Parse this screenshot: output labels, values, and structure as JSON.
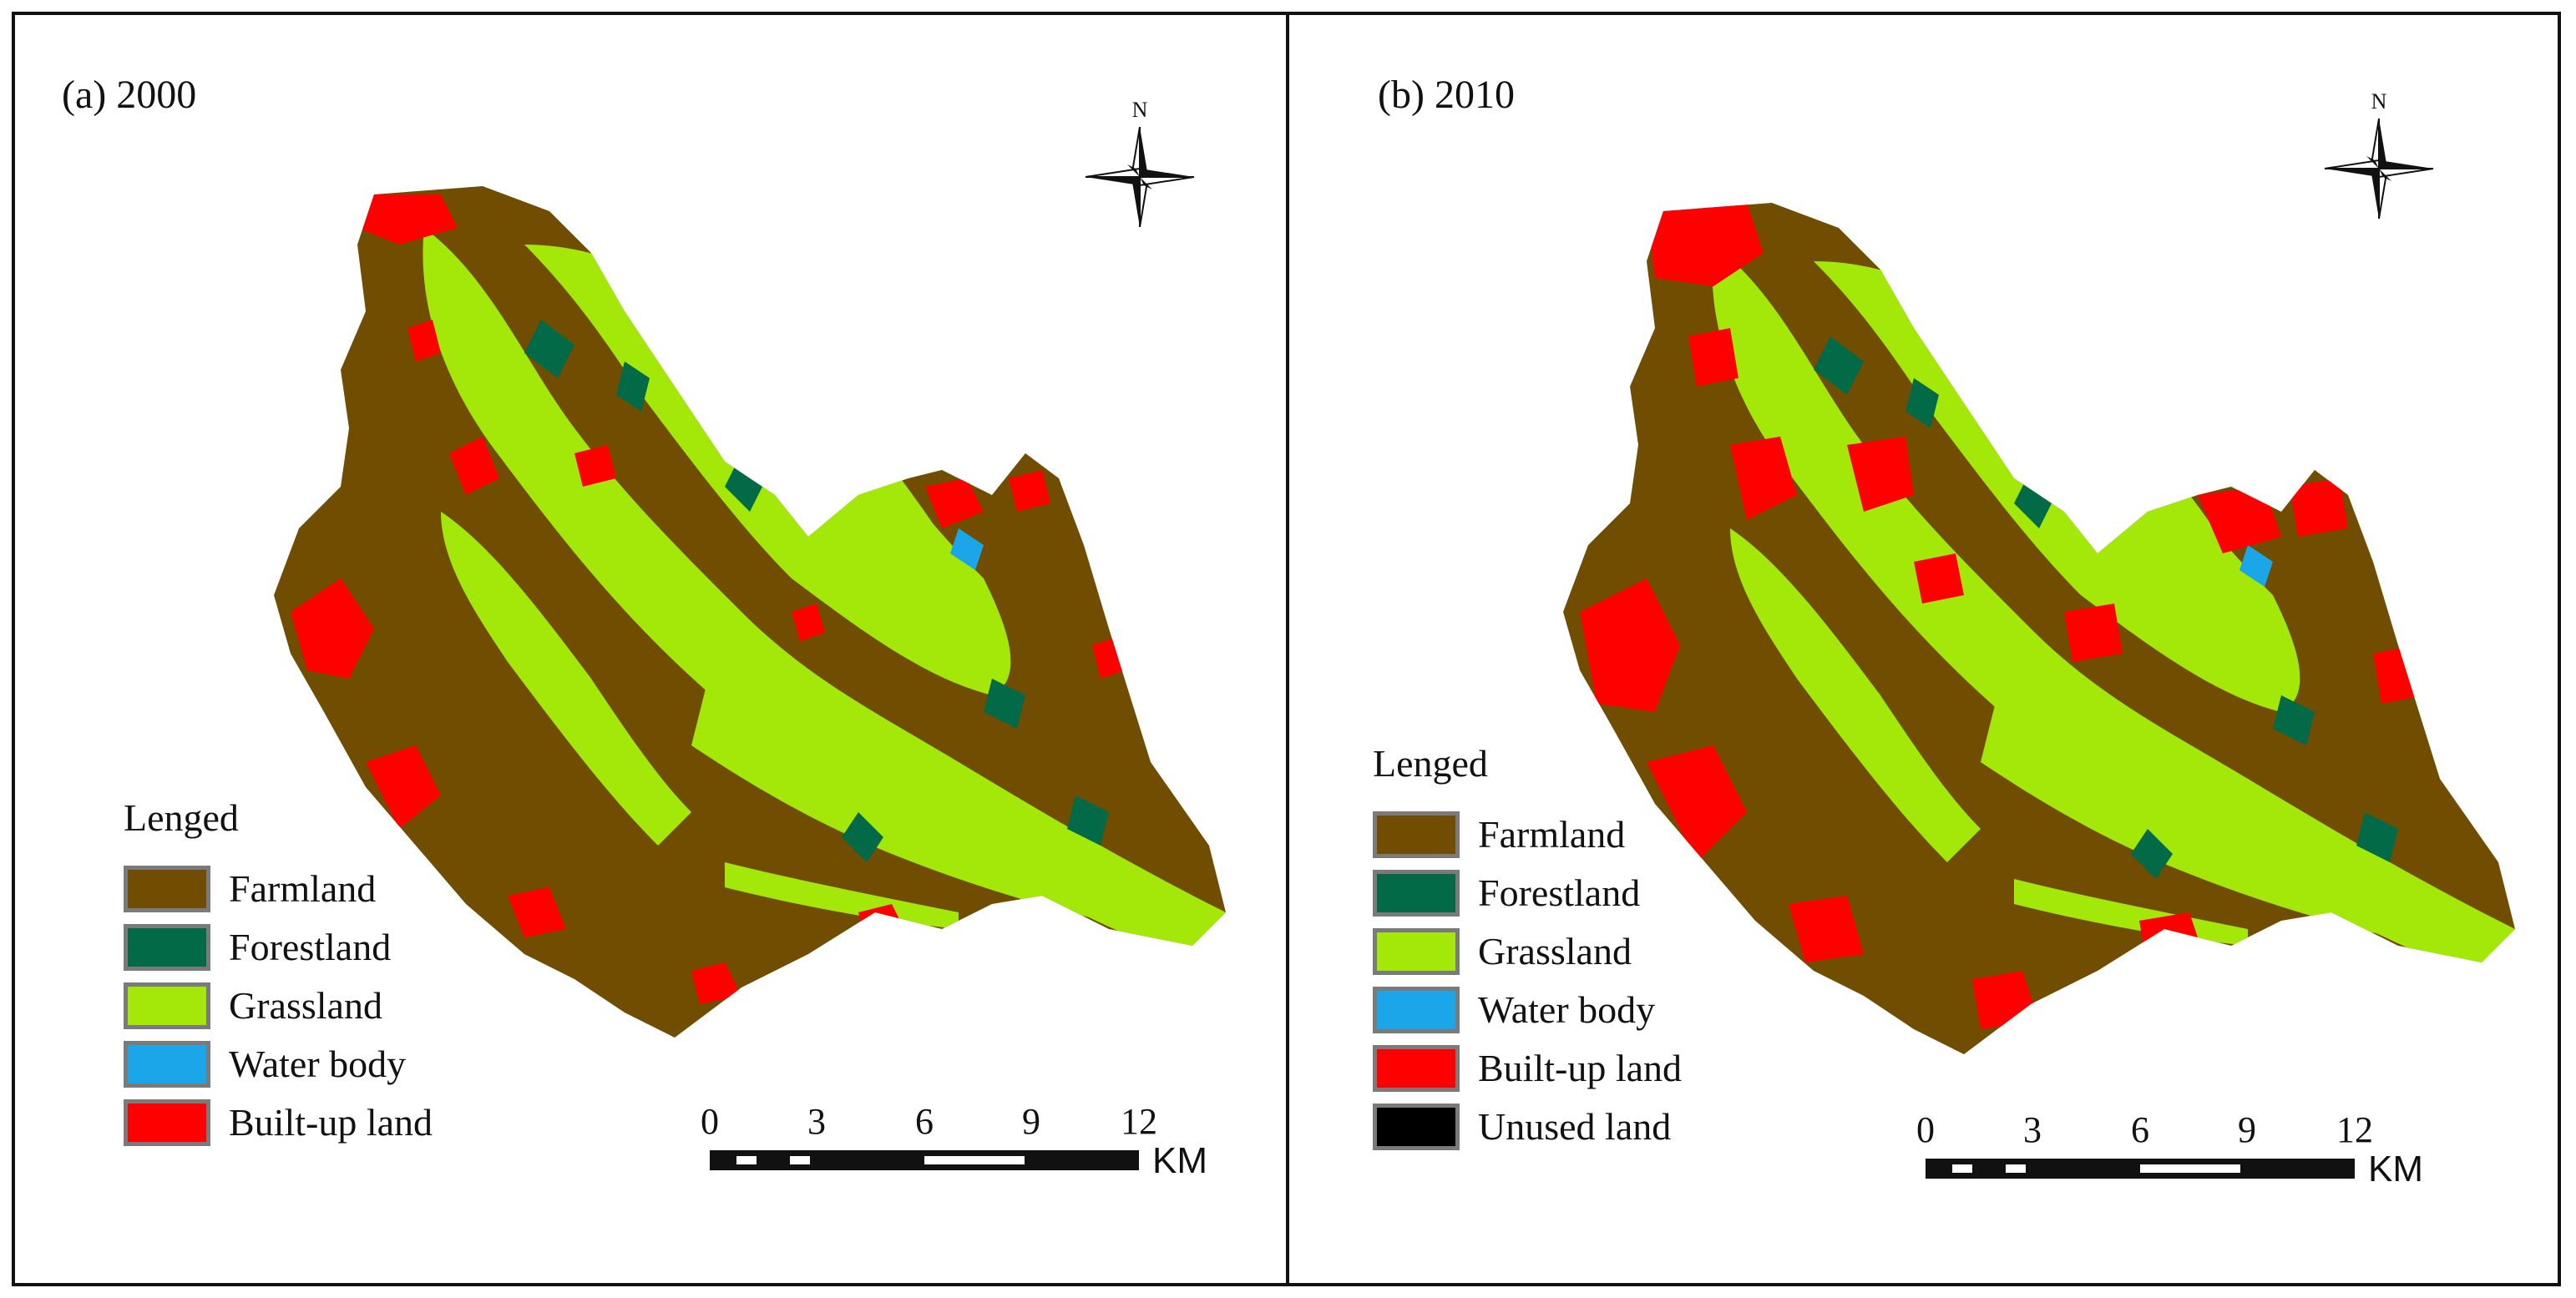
{
  "colors": {
    "farmland": "#704d00",
    "forestland": "#026a46",
    "grassland": "#a3e808",
    "water_body": "#1aa6e8",
    "built_up_land": "#ff0000",
    "unused_land": "#000000"
  },
  "north_label": "N",
  "scale_bar": {
    "ticks": [
      "0",
      "3",
      "6",
      "9",
      "12"
    ],
    "unit": "KM"
  },
  "panels": [
    {
      "title": "(a) 2000",
      "legend_title": "Lenged",
      "legend": [
        {
          "label": "Farmland",
          "color": "#704d00"
        },
        {
          "label": "Forestland",
          "color": "#026a46"
        },
        {
          "label": "Grassland",
          "color": "#a3e808"
        },
        {
          "label": "Water body",
          "color": "#1aa6e8"
        },
        {
          "label": "Built-up land",
          "color": "#ff0000"
        }
      ]
    },
    {
      "title": "(b) 2010",
      "legend_title": "Lenged",
      "legend": [
        {
          "label": "Farmland",
          "color": "#704d00"
        },
        {
          "label": "Forestland",
          "color": "#026a46"
        },
        {
          "label": "Grassland",
          "color": "#a3e808"
        },
        {
          "label": "Water body",
          "color": "#1aa6e8"
        },
        {
          "label": "Built-up land",
          "color": "#ff0000"
        },
        {
          "label": "Unused land",
          "color": "#000000"
        }
      ]
    }
  ]
}
